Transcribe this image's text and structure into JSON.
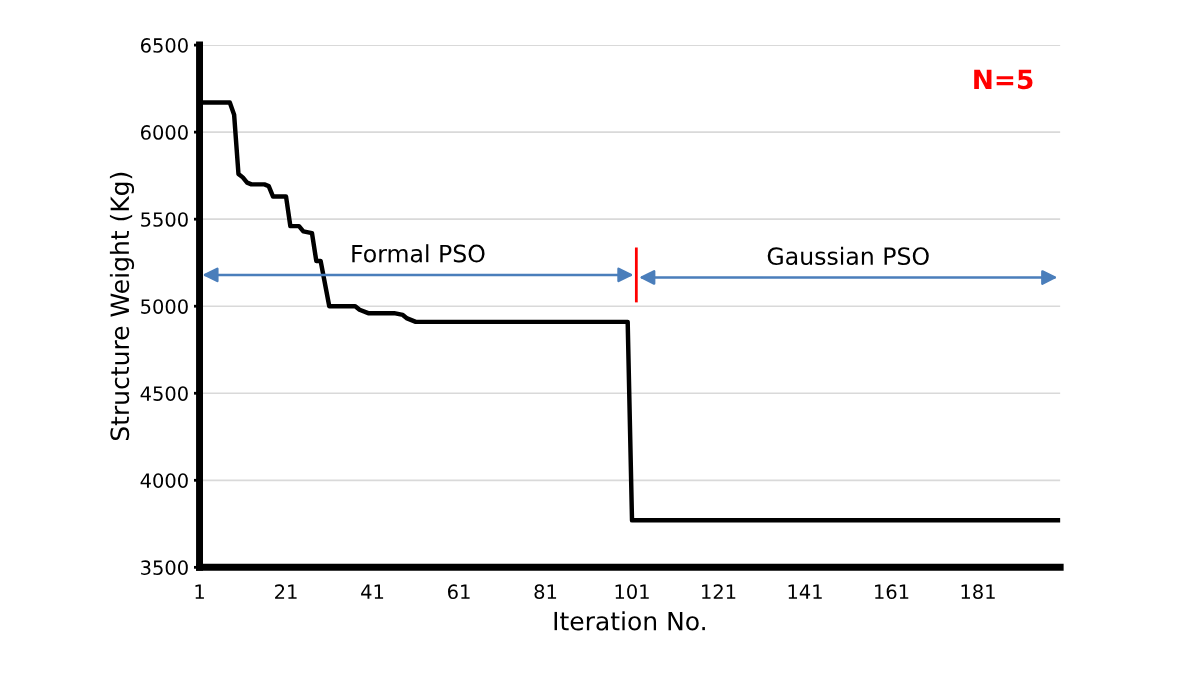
{
  "chart_data": {
    "type": "line",
    "xlabel": "Iteration No.",
    "ylabel": "Structure Weight (Kg)",
    "annotations": [
      "N=5",
      "Formal PSO",
      "Gaussian PSO"
    ],
    "series": [
      {
        "color": "#000000",
        "x": [
          1,
          8,
          9,
          10,
          11,
          12,
          13,
          16,
          17,
          18,
          21,
          22,
          24,
          25,
          27,
          28,
          29,
          31,
          37,
          38,
          40,
          46,
          48,
          49,
          51,
          100,
          101,
          200
        ],
        "values": [
          6170,
          6170,
          6100,
          5760,
          5740,
          5710,
          5700,
          5700,
          5690,
          5630,
          5630,
          5460,
          5460,
          5430,
          5420,
          5260,
          5260,
          5000,
          5000,
          4980,
          4960,
          4960,
          4950,
          4930,
          4910,
          4910,
          3770,
          3770
        ]
      }
    ],
    "ref_lines": [
      {
        "axis": "x",
        "value": 102,
        "color": "#ff0000"
      }
    ],
    "xlim": [
      1,
      200
    ],
    "xticks": [
      1,
      21,
      41,
      61,
      81,
      101,
      121,
      141,
      161,
      181
    ],
    "ylim": [
      3500,
      6500
    ],
    "yticks": [
      3500,
      4000,
      4500,
      5000,
      5500,
      6000,
      6500
    ],
    "grid": "y",
    "legend": false,
    "marker": "none",
    "line_style": "solid"
  }
}
